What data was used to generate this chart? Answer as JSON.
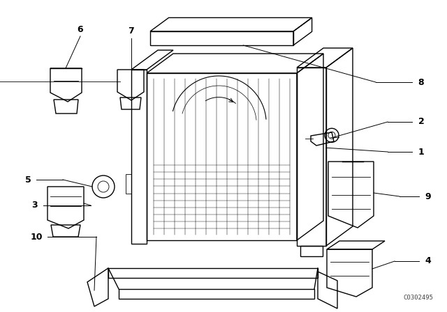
{
  "bg_color": "#ffffff",
  "line_color": "#000000",
  "diagram_code": "C0302495",
  "lw_main": 1.0,
  "lw_thin": 0.6,
  "lw_leader": 0.7,
  "font_size_num": 9,
  "font_size_code": 6.5
}
